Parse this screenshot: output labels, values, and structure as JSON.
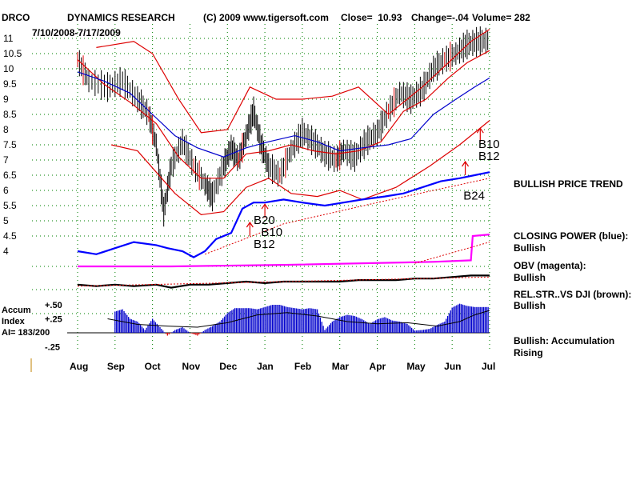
{
  "header": {
    "ticker": "DRCO",
    "company": "DYNAMICS RESEARCH",
    "copyright": "(C) 2009 www.tigersoft.com",
    "close_label": "Close=  10.93",
    "change_label": "Change=-.04",
    "volume_label": "Volume= 282",
    "date_range": "7/10/2008-7/17/2009"
  },
  "status": {
    "trend": "BULLISH PRICE TREND",
    "closing_power": "CLOSING POWER (blue):",
    "closing_power_state": "Bullish",
    "obv": "OBV (magenta):",
    "obv_state": "Bullish",
    "relstr": "REL.STR..VS DJI (brown):",
    "relstr_state": "Bullish",
    "accum": "Bullish: Accumulation Rising"
  },
  "accum_panel": {
    "title_line1": "Accum",
    "title_line2": "Index",
    "ai_label": "AI= 183/200"
  },
  "colors": {
    "price_bar": "#000000",
    "red_line": "#dd0000",
    "blue_line": "#0000cc",
    "closing_power": "#0000ff",
    "obv": "#ff00ff",
    "relstr": "#000000",
    "accum_bar": "#0000cc",
    "grid": "#008000"
  },
  "chart_data": {
    "type": "line",
    "x_months": [
      "Aug",
      "Sep",
      "Oct",
      "Nov",
      "Dec",
      "Jan",
      "Feb",
      "Mar",
      "Apr",
      "May",
      "Jun",
      "Jul"
    ],
    "price_axis": {
      "ticks": [
        4,
        4.5,
        5,
        5.5,
        6,
        6.5,
        7,
        7.5,
        8,
        8.5,
        9,
        9.5,
        10,
        10.5,
        11
      ],
      "tick_labels": [
        "4",
        "4.5",
        "5",
        "5.5",
        "6",
        "6.5",
        "7",
        "7.5",
        "8",
        "8.5",
        "9",
        "9.5",
        "10",
        "10.5",
        "11"
      ],
      "ylim": [
        4,
        11
      ],
      "grid": true
    },
    "price_close": [
      [
        0,
        10.3
      ],
      [
        0.3,
        9.6
      ],
      [
        0.8,
        9.4
      ],
      [
        1.2,
        9.6
      ],
      [
        1.6,
        9.0
      ],
      [
        1.9,
        8.5
      ],
      [
        2.1,
        7.5
      ],
      [
        2.3,
        5.3
      ],
      [
        2.5,
        6.8
      ],
      [
        2.8,
        7.6
      ],
      [
        3.1,
        6.8
      ],
      [
        3.4,
        6.2
      ],
      [
        3.6,
        5.8
      ],
      [
        3.9,
        6.8
      ],
      [
        4.1,
        7.4
      ],
      [
        4.3,
        7.0
      ],
      [
        4.5,
        7.8
      ],
      [
        4.7,
        8.6
      ],
      [
        4.9,
        7.5
      ],
      [
        5.1,
        6.8
      ],
      [
        5.4,
        6.5
      ],
      [
        5.7,
        7.3
      ],
      [
        6.0,
        7.9
      ],
      [
        6.3,
        7.6
      ],
      [
        6.6,
        7.2
      ],
      [
        6.9,
        7.0
      ],
      [
        7.1,
        7.3
      ],
      [
        7.4,
        7.1
      ],
      [
        7.7,
        7.6
      ],
      [
        8.0,
        7.9
      ],
      [
        8.3,
        8.6
      ],
      [
        8.6,
        9.2
      ],
      [
        8.9,
        9.0
      ],
      [
        9.2,
        9.3
      ],
      [
        9.5,
        10.0
      ],
      [
        9.8,
        10.3
      ],
      [
        10.1,
        10.5
      ],
      [
        10.4,
        10.8
      ],
      [
        10.7,
        10.9
      ],
      [
        11,
        10.93
      ]
    ],
    "upper_band": [
      [
        0.5,
        10.7
      ],
      [
        1.5,
        10.9
      ],
      [
        2.0,
        10.5
      ],
      [
        2.7,
        9.0
      ],
      [
        3.3,
        7.9
      ],
      [
        4.0,
        8.0
      ],
      [
        4.6,
        9.4
      ],
      [
        5.3,
        9.0
      ],
      [
        6.0,
        9.0
      ],
      [
        6.8,
        9.1
      ],
      [
        7.5,
        9.4
      ],
      [
        8.3,
        8.5
      ],
      [
        9.2,
        9.4
      ],
      [
        9.9,
        10.2
      ],
      [
        10.5,
        10.9
      ],
      [
        11,
        11.3
      ]
    ],
    "lower_band": [
      [
        0.9,
        7.5
      ],
      [
        1.6,
        7.3
      ],
      [
        2.1,
        6.6
      ],
      [
        2.6,
        5.9
      ],
      [
        3.3,
        5.2
      ],
      [
        3.9,
        5.3
      ],
      [
        4.5,
        6.1
      ],
      [
        5.1,
        6.4
      ],
      [
        5.7,
        5.9
      ],
      [
        6.4,
        5.8
      ],
      [
        7.0,
        6.0
      ],
      [
        7.6,
        5.7
      ],
      [
        8.5,
        6.1
      ],
      [
        9.4,
        6.8
      ],
      [
        10.2,
        7.5
      ],
      [
        11,
        8.3
      ]
    ],
    "ma21": [
      [
        0,
        10.3
      ],
      [
        0.7,
        9.5
      ],
      [
        1.4,
        8.9
      ],
      [
        2.1,
        8.2
      ],
      [
        2.7,
        7.1
      ],
      [
        3.3,
        6.4
      ],
      [
        3.9,
        6.4
      ],
      [
        4.5,
        7.2
      ],
      [
        5.1,
        7.3
      ],
      [
        5.7,
        7.5
      ],
      [
        6.3,
        7.3
      ],
      [
        6.9,
        7.2
      ],
      [
        7.5,
        7.3
      ],
      [
        8.1,
        7.6
      ],
      [
        8.7,
        8.6
      ],
      [
        9.3,
        9.0
      ],
      [
        9.9,
        9.7
      ],
      [
        10.4,
        10.2
      ],
      [
        11,
        10.6
      ]
    ],
    "ma50": [
      [
        0,
        9.9
      ],
      [
        0.7,
        9.6
      ],
      [
        1.4,
        9.2
      ],
      [
        2.0,
        8.5
      ],
      [
        2.6,
        7.8
      ],
      [
        3.2,
        7.4
      ],
      [
        3.9,
        7.1
      ],
      [
        4.5,
        7.4
      ],
      [
        5.1,
        7.6
      ],
      [
        5.8,
        7.8
      ],
      [
        6.4,
        7.6
      ],
      [
        7.0,
        7.3
      ],
      [
        7.6,
        7.4
      ],
      [
        8.3,
        7.5
      ],
      [
        8.9,
        7.7
      ],
      [
        9.5,
        8.5
      ],
      [
        10.1,
        9.0
      ],
      [
        10.6,
        9.4
      ],
      [
        11,
        9.7
      ]
    ],
    "closing_power": [
      [
        0,
        4.0
      ],
      [
        0.5,
        3.9
      ],
      [
        1.0,
        4.1
      ],
      [
        1.5,
        4.3
      ],
      [
        2.1,
        4.2
      ],
      [
        2.4,
        4.1
      ],
      [
        2.8,
        4.0
      ],
      [
        3.1,
        3.8
      ],
      [
        3.4,
        4.0
      ],
      [
        3.7,
        4.4
      ],
      [
        4.1,
        4.6
      ],
      [
        4.4,
        5.4
      ],
      [
        4.7,
        5.6
      ],
      [
        5.0,
        5.6
      ],
      [
        5.5,
        5.7
      ],
      [
        6.0,
        5.6
      ],
      [
        6.6,
        5.5
      ],
      [
        7.1,
        5.6
      ],
      [
        7.6,
        5.7
      ],
      [
        8.2,
        5.8
      ],
      [
        8.7,
        5.9
      ],
      [
        9.2,
        6.1
      ],
      [
        9.7,
        6.3
      ],
      [
        10.2,
        6.4
      ],
      [
        10.6,
        6.5
      ],
      [
        11,
        6.6
      ]
    ],
    "cp_trend": [
      [
        3.4,
        3.9
      ],
      [
        5.5,
        4.9
      ],
      [
        8.0,
        5.6
      ],
      [
        11,
        6.4
      ]
    ],
    "obv": [
      [
        0,
        3.5
      ],
      [
        2.5,
        3.5
      ],
      [
        5.5,
        3.55
      ],
      [
        9.5,
        3.65
      ],
      [
        10.5,
        3.7
      ],
      [
        10.55,
        4.5
      ],
      [
        11,
        4.55
      ]
    ],
    "obv_trend": [
      [
        9.0,
        3.6
      ],
      [
        11,
        4.3
      ]
    ],
    "relstr": [
      [
        0,
        2.9
      ],
      [
        0.5,
        2.85
      ],
      [
        1.0,
        2.9
      ],
      [
        1.5,
        2.85
      ],
      [
        2.1,
        2.9
      ],
      [
        2.5,
        2.8
      ],
      [
        3.0,
        2.9
      ],
      [
        3.5,
        2.9
      ],
      [
        4.0,
        2.95
      ],
      [
        4.5,
        3.0
      ],
      [
        5.0,
        2.95
      ],
      [
        5.5,
        3.0
      ],
      [
        6.0,
        3.0
      ],
      [
        6.5,
        3.0
      ],
      [
        7.0,
        3.0
      ],
      [
        7.5,
        3.05
      ],
      [
        8.0,
        3.05
      ],
      [
        8.5,
        3.05
      ],
      [
        9.0,
        3.1
      ],
      [
        9.5,
        3.1
      ],
      [
        10.0,
        3.15
      ],
      [
        10.5,
        3.2
      ],
      [
        11,
        3.2
      ]
    ],
    "relstr_trend": [
      [
        0,
        2.85
      ],
      [
        11,
        3.15
      ]
    ],
    "accum_axis": {
      "ticks": [
        0.5,
        0.25,
        0,
        -0.25
      ],
      "tick_labels": [
        "+.50",
        "+.25",
        "",
        "-.25"
      ],
      "ylim": [
        -0.3,
        0.6
      ]
    },
    "accum": [
      [
        1.0,
        0.38
      ],
      [
        1.2,
        0.42
      ],
      [
        1.4,
        0.25
      ],
      [
        1.6,
        0.2
      ],
      [
        1.8,
        0.05
      ],
      [
        2.0,
        0.25
      ],
      [
        2.2,
        0.1
      ],
      [
        2.4,
        -0.05
      ],
      [
        2.6,
        0.05
      ],
      [
        2.8,
        0.1
      ],
      [
        3.0,
        0.0
      ],
      [
        3.2,
        -0.05
      ],
      [
        3.4,
        0.05
      ],
      [
        3.6,
        0.12
      ],
      [
        3.8,
        0.2
      ],
      [
        4.0,
        0.35
      ],
      [
        4.2,
        0.44
      ],
      [
        4.4,
        0.44
      ],
      [
        4.6,
        0.44
      ],
      [
        4.8,
        0.42
      ],
      [
        5.0,
        0.46
      ],
      [
        5.2,
        0.5
      ],
      [
        5.4,
        0.5
      ],
      [
        5.6,
        0.46
      ],
      [
        5.8,
        0.44
      ],
      [
        6.0,
        0.42
      ],
      [
        6.2,
        0.44
      ],
      [
        6.4,
        0.42
      ],
      [
        6.6,
        0.05
      ],
      [
        6.8,
        0.2
      ],
      [
        7.0,
        0.28
      ],
      [
        7.2,
        0.32
      ],
      [
        7.4,
        0.3
      ],
      [
        7.6,
        0.24
      ],
      [
        7.8,
        0.16
      ],
      [
        8.0,
        0.24
      ],
      [
        8.2,
        0.28
      ],
      [
        8.4,
        0.22
      ],
      [
        8.6,
        0.2
      ],
      [
        8.8,
        0.16
      ],
      [
        9.0,
        0.04
      ],
      [
        9.2,
        0.05
      ],
      [
        9.4,
        0.07
      ],
      [
        9.6,
        0.14
      ],
      [
        9.8,
        0.2
      ],
      [
        10.0,
        0.45
      ],
      [
        10.2,
        0.52
      ],
      [
        10.4,
        0.48
      ],
      [
        10.6,
        0.46
      ],
      [
        10.8,
        0.46
      ],
      [
        11,
        0.46
      ]
    ],
    "accum_ma": [
      [
        0.8,
        0.25
      ],
      [
        1.6,
        0.15
      ],
      [
        2.4,
        0.12
      ],
      [
        3.2,
        0.1
      ],
      [
        4.0,
        0.18
      ],
      [
        4.8,
        0.32
      ],
      [
        5.6,
        0.36
      ],
      [
        6.4,
        0.3
      ],
      [
        7.2,
        0.2
      ],
      [
        8.0,
        0.16
      ],
      [
        8.8,
        0.18
      ],
      [
        9.6,
        0.12
      ],
      [
        10.2,
        0.2
      ],
      [
        10.6,
        0.32
      ],
      [
        11,
        0.4
      ]
    ],
    "annotations": [
      {
        "text": "B20",
        "x": 4.7,
        "y": 4.9
      },
      {
        "text": "B10",
        "x": 4.9,
        "y": 4.5
      },
      {
        "text": "B12",
        "x": 4.7,
        "y": 4.1
      },
      {
        "text": "B10",
        "x": 10.7,
        "y": 7.4
      },
      {
        "text": "B12",
        "x": 10.7,
        "y": 7.0
      },
      {
        "text": "B24",
        "x": 10.3,
        "y": 5.7
      }
    ],
    "arrows": [
      {
        "x": 4.6,
        "y": 4.5
      },
      {
        "x": 5.0,
        "y": 5.1
      },
      {
        "x": 10.35,
        "y": 6.5
      },
      {
        "x": 10.75,
        "y": 7.6
      }
    ]
  }
}
